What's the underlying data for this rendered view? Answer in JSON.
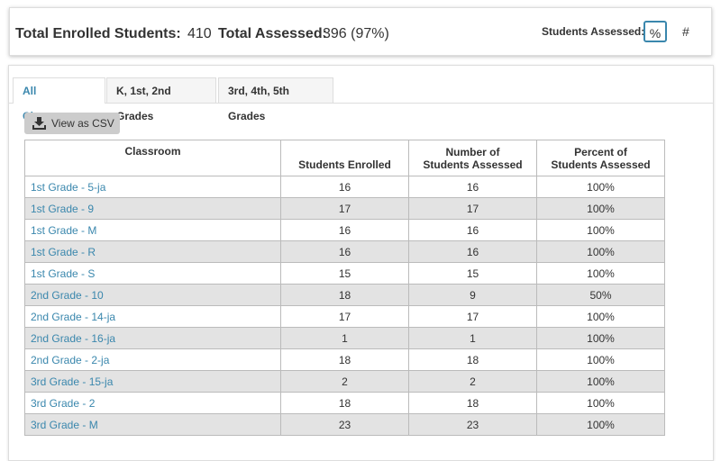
{
  "summary": {
    "enrolled_label": "Total Enrolled Students:",
    "enrolled_value": 410,
    "assessed_label": "Total Assessed:",
    "assessed_value": "396 (97%)",
    "toggle_label": "Students Assessed:",
    "toggle_options": [
      "%",
      "#"
    ]
  },
  "tabs": [
    "All Classrooms",
    "K, 1st, 2nd Grades",
    "3rd, 4th, 5th Grades"
  ],
  "csv_button": "View as CSV",
  "table": {
    "headers": [
      [
        "Classroom"
      ],
      [
        "Students Enrolled"
      ],
      [
        "Number of",
        "Students Assessed"
      ],
      [
        "Percent of",
        "Students Assessed"
      ]
    ],
    "rows": [
      [
        "1st Grade - 5-ja",
        16,
        16,
        "100%"
      ],
      [
        "1st Grade - 9",
        17,
        17,
        "100%"
      ],
      [
        "1st Grade - M",
        16,
        16,
        "100%"
      ],
      [
        "1st Grade - R",
        16,
        16,
        "100%"
      ],
      [
        "1st Grade - S",
        15,
        15,
        "100%"
      ],
      [
        "2nd Grade - 10",
        18,
        9,
        "50%"
      ],
      [
        "2nd Grade - 14-ja",
        17,
        17,
        "100%"
      ],
      [
        "2nd Grade - 16-ja",
        1,
        1,
        "100%"
      ],
      [
        "2nd Grade - 2-ja",
        18,
        18,
        "100%"
      ],
      [
        "3rd Grade - 15-ja",
        2,
        2,
        "100%"
      ],
      [
        "3rd Grade - 2",
        18,
        18,
        "100%"
      ],
      [
        "3rd Grade - M",
        23,
        23,
        "100%"
      ]
    ]
  }
}
